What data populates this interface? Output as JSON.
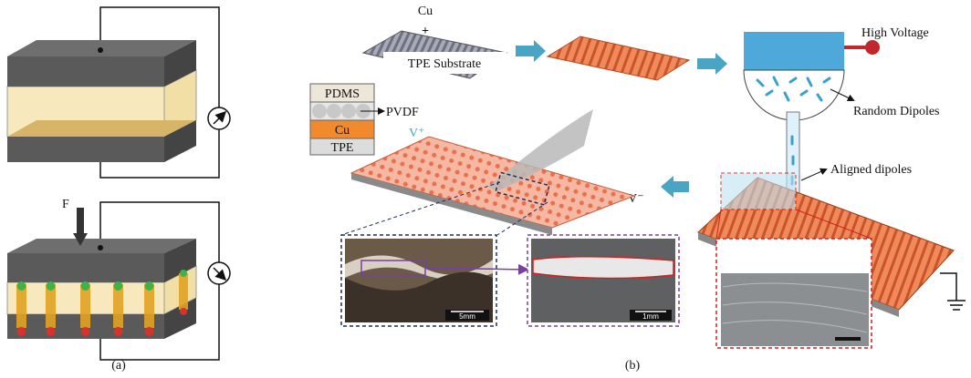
{
  "panel_a": {
    "force_label": "F",
    "caption": "(a)"
  },
  "panel_b": {
    "cu_label": "Cu",
    "plus_sign": "+",
    "substrate_label": "TPE Substrate",
    "high_voltage": "High Voltage",
    "random_dipoles": "Random Dipoles",
    "aligned_dipoles": "Aligned dipoles",
    "v_plus": "V⁺",
    "v_minus": "V⁻",
    "layers": [
      "PDMS",
      "PVDF",
      "Cu",
      "TPE"
    ],
    "scale_bars": [
      "5mm",
      "1mm"
    ],
    "caption": "(b)"
  }
}
